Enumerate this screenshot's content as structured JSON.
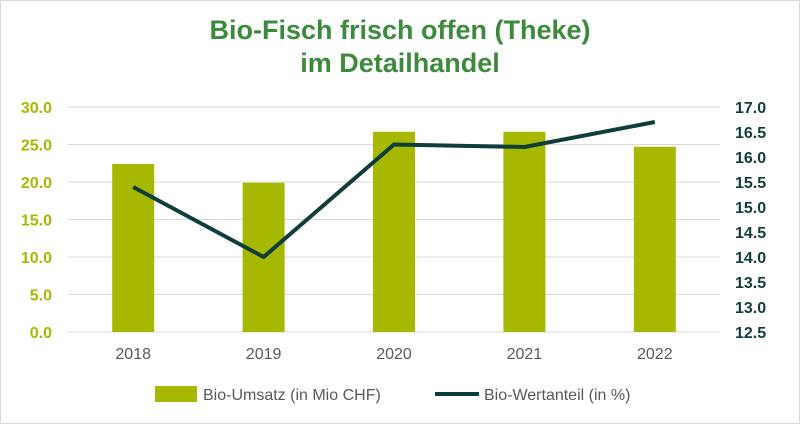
{
  "chart_data": {
    "type": "bar",
    "title_lines": [
      "Bio-Fisch frisch offen (Theke)",
      "im Detailhandel"
    ],
    "categories": [
      "2018",
      "2019",
      "2020",
      "2021",
      "2022"
    ],
    "series": [
      {
        "name": "Bio-Umsatz (in Mio CHF)",
        "type": "bar",
        "axis": "left",
        "values": [
          22.4,
          19.9,
          26.7,
          26.7,
          24.7
        ]
      },
      {
        "name": "Bio-Wertanteil (in %)",
        "type": "line",
        "axis": "right",
        "values": [
          15.4,
          14.0,
          16.25,
          16.2,
          16.7
        ]
      }
    ],
    "y_left": {
      "min": 0,
      "max": 30,
      "step": 5,
      "tick_labels": [
        "0.0",
        "5.0",
        "10.0",
        "15.0",
        "20.0",
        "25.0",
        "30.0"
      ]
    },
    "y_right": {
      "min": 12.5,
      "max": 17,
      "step": 0.5,
      "tick_labels": [
        "12.5",
        "13.0",
        "13.5",
        "14.0",
        "14.5",
        "15.0",
        "15.5",
        "16.0",
        "16.5",
        "17.0"
      ]
    },
    "grid": true,
    "legend_position": "bottom",
    "colors": {
      "bar": "#a7b800",
      "line": "#0f3d3a",
      "title": "#3c8b3c",
      "grid": "#d9d9d9"
    }
  }
}
